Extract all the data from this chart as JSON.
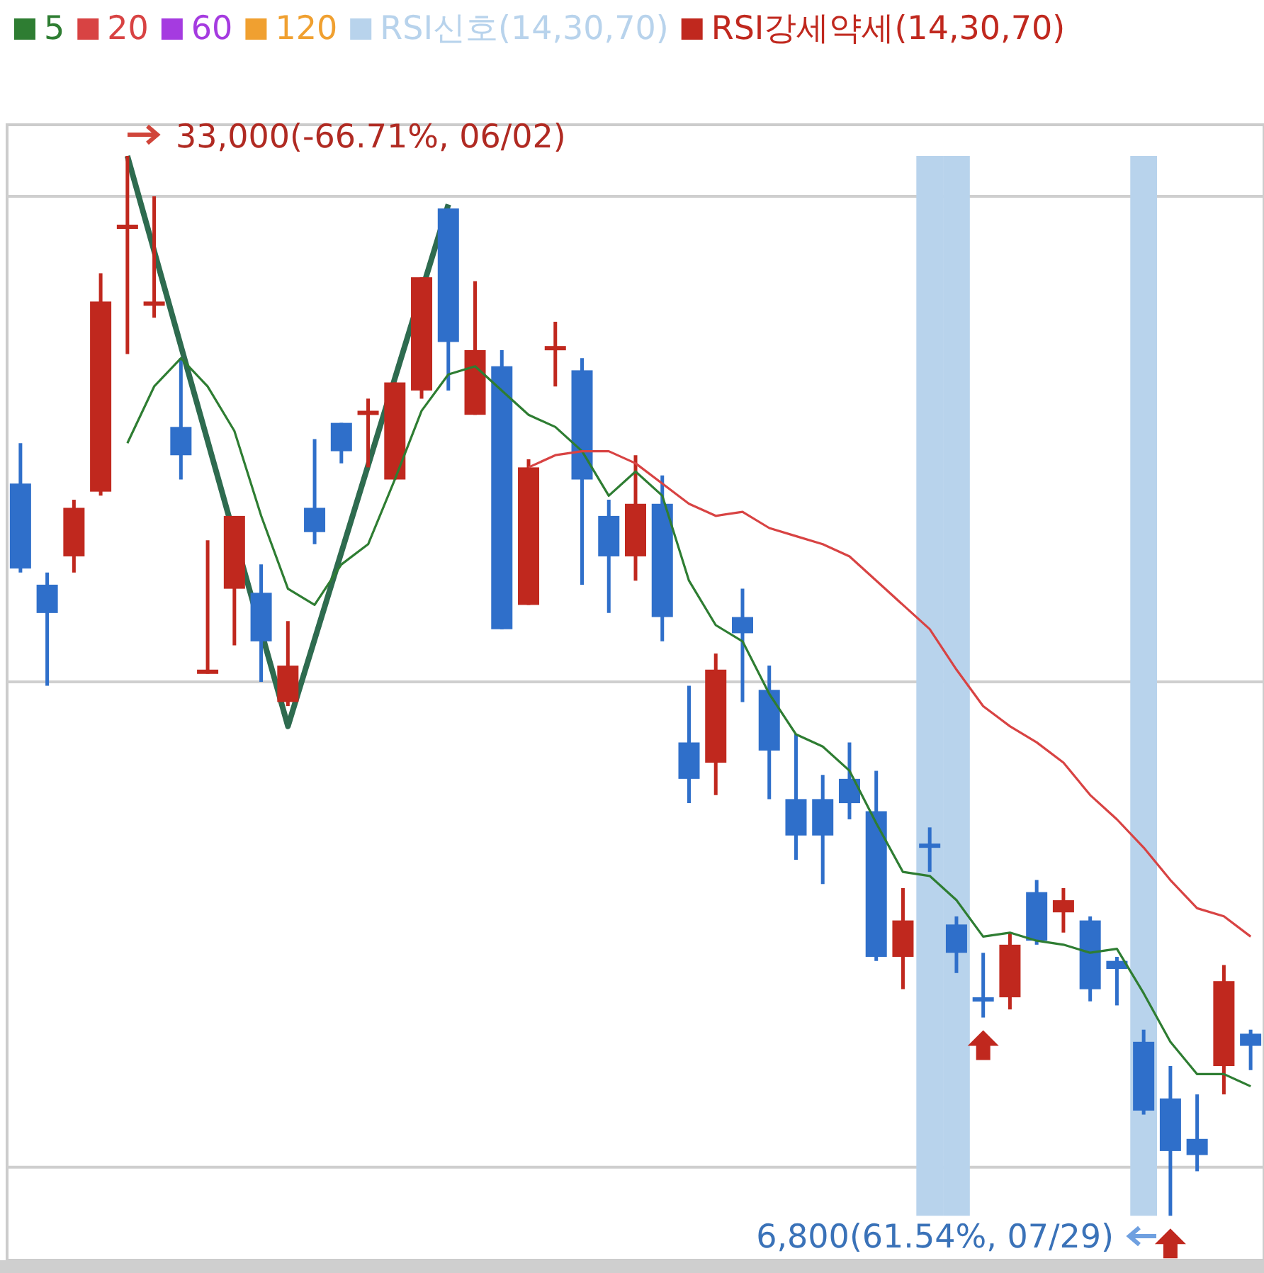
{
  "chart_data": {
    "type": "candlestick",
    "legend": "top left",
    "grid": "y",
    "categories": [
      null,
      null,
      null,
      null,
      null,
      null,
      null,
      null,
      null,
      null,
      null,
      null,
      null,
      null,
      null,
      null,
      null,
      null,
      null,
      null,
      null,
      null,
      null,
      null,
      null,
      null,
      null,
      null,
      null,
      null,
      null,
      null,
      null,
      null,
      null,
      null,
      null,
      null,
      null,
      null,
      null,
      null,
      null,
      null,
      null,
      null,
      null
    ],
    "ylim": [
      5700,
      33700
    ],
    "yticks": [
      {
        "value": 32000,
        "label": null
      },
      {
        "value": 20000,
        "label": null
      },
      {
        "value": 8000,
        "label": null
      }
    ],
    "ohlc": [
      [
        24900,
        25900,
        22700,
        22800
      ],
      [
        22400,
        22700,
        19900,
        21700
      ],
      [
        23100,
        24500,
        22700,
        24300
      ],
      [
        24700,
        30100,
        24600,
        29400
      ],
      [
        31200,
        33000,
        28100,
        31300
      ],
      [
        29300,
        32000,
        29000,
        29400
      ],
      [
        26300,
        28000,
        25000,
        25600
      ],
      [
        20200,
        23500,
        20200,
        20300
      ],
      [
        22300,
        24100,
        20900,
        24100
      ],
      [
        22200,
        22900,
        20000,
        21000
      ],
      [
        19500,
        21500,
        19400,
        20400
      ],
      [
        24300,
        26000,
        23400,
        23700
      ],
      [
        26400,
        26400,
        25400,
        25700
      ],
      [
        26600,
        27000,
        25300,
        26700
      ],
      [
        25000,
        27400,
        25000,
        27400
      ],
      [
        27200,
        30000,
        27000,
        30000
      ],
      [
        31700,
        31700,
        27200,
        28400
      ],
      [
        26600,
        29900,
        26600,
        28200
      ],
      [
        27800,
        28200,
        21300,
        21300
      ],
      [
        21900,
        25500,
        21900,
        25300
      ],
      [
        28200,
        28900,
        27300,
        28300
      ],
      [
        27700,
        28000,
        22400,
        25000
      ],
      [
        24100,
        24500,
        21700,
        23100
      ],
      [
        23100,
        25600,
        22500,
        24400
      ],
      [
        24400,
        25100,
        21000,
        21600
      ],
      [
        18500,
        19900,
        17000,
        17600
      ],
      [
        18000,
        20700,
        17200,
        20300
      ],
      [
        21600,
        22300,
        19500,
        21200
      ],
      [
        19800,
        20400,
        17100,
        18300
      ],
      [
        17100,
        18700,
        15600,
        16200
      ],
      [
        17100,
        17700,
        15000,
        16200
      ],
      [
        17600,
        18500,
        16600,
        17000
      ],
      [
        16800,
        17800,
        13100,
        13200
      ],
      [
        13200,
        14900,
        12400,
        14100
      ],
      [
        16000,
        16400,
        15300,
        15900
      ],
      [
        14000,
        14200,
        12800,
        13300
      ],
      [
        12200,
        13300,
        11700,
        12100
      ],
      [
        12200,
        13800,
        11900,
        13500
      ],
      [
        14800,
        15100,
        13500,
        13600
      ],
      [
        14300,
        14900,
        13800,
        14600
      ],
      [
        14100,
        14200,
        12100,
        12400
      ],
      [
        13100,
        13200,
        12000,
        12900
      ],
      [
        11100,
        11400,
        9300,
        9400
      ],
      [
        9700,
        10500,
        6800,
        8400
      ],
      [
        8700,
        9800,
        7900,
        8300
      ],
      [
        10500,
        13000,
        9800,
        12600
      ],
      [
        11300,
        11400,
        10400,
        11000
      ]
    ],
    "colors": [
      "#2f6fca",
      "#2f6fca",
      "#c0281e",
      "#c0281e",
      "#c0281e",
      "#c0281e",
      "#2f6fca",
      "#c0281e",
      "#c0281e",
      "#2f6fca",
      "#c0281e",
      "#2f6fca",
      "#2f6fca",
      "#c0281e",
      "#c0281e",
      "#c0281e",
      "#2f6fca",
      "#c0281e",
      "#2f6fca",
      "#c0281e",
      "#c0281e",
      "#2f6fca",
      "#2f6fca",
      "#c0281e",
      "#2f6fca",
      "#2f6fca",
      "#c0281e",
      "#2f6fca",
      "#2f6fca",
      "#2f6fca",
      "#2f6fca",
      "#2f6fca",
      "#2f6fca",
      "#c0281e",
      "#2f6fca",
      "#2f6fca",
      "#2f6fca",
      "#c0281e",
      "#2f6fca",
      "#c0281e",
      "#2f6fca",
      "#2f6fca",
      "#2f6fca",
      "#2f6fca",
      "#2f6fca",
      "#c0281e",
      "#2f6fca"
    ],
    "series": [
      {
        "name": "5",
        "type": "line",
        "marker": "none",
        "color": "#2e7d32",
        "values": [
          null,
          null,
          null,
          null,
          25900,
          27300,
          28000,
          27300,
          26200,
          24100,
          22300,
          21900,
          22900,
          23400,
          25000,
          26700,
          27600,
          27800,
          27200,
          26600,
          26300,
          25700,
          24600,
          25200,
          24600,
          22500,
          21400,
          21000,
          19700,
          18700,
          18400,
          17800,
          16500,
          15300,
          15200,
          14600,
          13700,
          13800,
          13600,
          13500,
          13300,
          13400,
          12300,
          11100,
          10300,
          10300,
          10000
        ]
      },
      {
        "name": "20",
        "type": "line",
        "marker": "none",
        "color": "#d84343",
        "values": [
          null,
          null,
          null,
          null,
          null,
          null,
          null,
          null,
          null,
          null,
          null,
          null,
          null,
          null,
          null,
          null,
          null,
          null,
          null,
          25300,
          25600,
          25700,
          25700,
          25400,
          24900,
          24400,
          24100,
          24200,
          23800,
          23600,
          23400,
          23100,
          22500,
          21900,
          21300,
          20300,
          19400,
          18900,
          18500,
          18000,
          17200,
          16600,
          15900,
          15100,
          14400,
          14200,
          13700
        ]
      },
      {
        "name": "60",
        "type": "line",
        "marker": "none",
        "color": "#a53be0",
        "values": [
          null,
          null,
          null,
          null,
          null,
          null,
          null,
          null,
          null,
          null,
          null,
          null,
          null,
          null,
          null,
          null,
          null,
          null,
          null,
          null,
          null,
          null,
          null,
          null,
          null,
          null,
          null,
          null,
          null,
          null,
          null,
          null,
          null,
          null,
          null,
          null,
          null,
          null,
          null,
          null,
          null,
          null,
          null,
          null,
          null,
          null,
          null
        ]
      },
      {
        "name": "120",
        "type": "line",
        "marker": "none",
        "color": "#f0a030",
        "values": [
          null,
          null,
          null,
          null,
          null,
          null,
          null,
          null,
          null,
          null,
          null,
          null,
          null,
          null,
          null,
          null,
          null,
          null,
          null,
          null,
          null,
          null,
          null,
          null,
          null,
          null,
          null,
          null,
          null,
          null,
          null,
          null,
          null,
          null,
          null,
          null,
          null,
          null,
          null,
          null,
          null,
          null,
          null,
          null,
          null,
          null,
          null
        ]
      },
      {
        "name": "RSI신호(14,30,70)",
        "type": "bar",
        "color": "#b8d3ec",
        "base": [
          null,
          null,
          null,
          null,
          null,
          null,
          null,
          null,
          null,
          null,
          null,
          null,
          null,
          null,
          null,
          null,
          null,
          null,
          null,
          null,
          null,
          null,
          null,
          null,
          null,
          null,
          null,
          null,
          null,
          null,
          null,
          null,
          null,
          null,
          6800,
          6800,
          null,
          null,
          null,
          null,
          null,
          null,
          6800,
          null,
          null,
          null,
          null
        ],
        "values": [
          null,
          null,
          null,
          null,
          null,
          null,
          null,
          null,
          null,
          null,
          null,
          null,
          null,
          null,
          null,
          null,
          null,
          null,
          null,
          null,
          null,
          null,
          null,
          null,
          null,
          null,
          null,
          null,
          null,
          null,
          null,
          null,
          null,
          null,
          26200,
          26200,
          null,
          null,
          null,
          null,
          null,
          null,
          26200,
          null,
          null,
          null,
          null
        ]
      },
      {
        "name": "RSI강세약세(14,30,70)",
        "type": "scatter",
        "marker": "triangle",
        "color": "#c0281e",
        "values": [
          null,
          null,
          null,
          null,
          null,
          null,
          null,
          null,
          null,
          null,
          null,
          null,
          null,
          null,
          null,
          null,
          null,
          null,
          null,
          null,
          null,
          null,
          null,
          null,
          null,
          null,
          null,
          null,
          null,
          null,
          null,
          null,
          null,
          null,
          null,
          null,
          11000,
          null,
          null,
          null,
          null,
          null,
          null,
          6100,
          null,
          null,
          null
        ]
      },
      {
        "type": "line",
        "marker": "none",
        "color": "#2e6b4f",
        "values": [
          null,
          null,
          null,
          null,
          33000,
          null,
          null,
          null,
          null,
          null,
          18900,
          null,
          null,
          null,
          null,
          null,
          31800,
          null,
          null,
          null,
          null,
          null,
          null,
          null,
          null,
          null,
          null,
          null,
          null,
          null,
          null,
          null,
          null,
          null,
          null,
          null,
          null,
          null,
          null,
          null,
          null,
          null,
          null,
          null,
          null,
          null,
          null
        ]
      }
    ],
    "annotations": [
      "33,000(-66.71%, 06/02)",
      "6,800(61.54%, 07/29)"
    ]
  }
}
